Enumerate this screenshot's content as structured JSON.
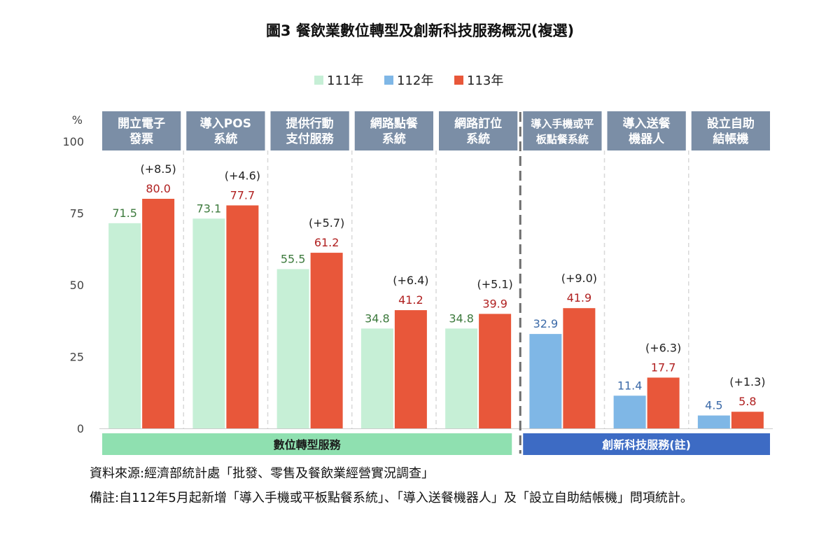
{
  "chart_data": {
    "type": "bar",
    "title": "圖3  餐飲業數位轉型及創新科技服務概況(複選)",
    "ylabel": "%",
    "ylim": [
      0,
      100
    ],
    "yticks": [
      0,
      25,
      50,
      75,
      100
    ],
    "legend_position": "top-center",
    "series_colors": {
      "111年": "#c6efd6",
      "112年": "#7fb7e6",
      "113年": "#e8573a"
    },
    "legend": [
      {
        "name": "111年",
        "color": "#c6efd6"
      },
      {
        "name": "112年",
        "color": "#7fb7e6"
      },
      {
        "name": "113年",
        "color": "#e8573a"
      }
    ],
    "categories": [
      {
        "label_lines": [
          "開立電子",
          "發票"
        ],
        "prev_series": "111年",
        "prev": 71.5,
        "current": 80.0,
        "change": "(+8.5)"
      },
      {
        "label_lines": [
          "導入POS",
          "系統"
        ],
        "prev_series": "111年",
        "prev": 73.1,
        "current": 77.7,
        "change": "(+4.6)"
      },
      {
        "label_lines": [
          "提供行動",
          "支付服務"
        ],
        "prev_series": "111年",
        "prev": 55.5,
        "current": 61.2,
        "change": "(+5.7)"
      },
      {
        "label_lines": [
          "網路點餐",
          "系統"
        ],
        "prev_series": "111年",
        "prev": 34.8,
        "current": 41.2,
        "change": "(+6.4)"
      },
      {
        "label_lines": [
          "網路訂位",
          "系統"
        ],
        "prev_series": "111年",
        "prev": 34.8,
        "current": 39.9,
        "change": "(+5.1)"
      },
      {
        "label_lines": [
          "導入手機或平",
          "板點餐系統"
        ],
        "prev_series": "112年",
        "prev": 32.9,
        "current": 41.9,
        "change": "(+9.0)"
      },
      {
        "label_lines": [
          "導入送餐",
          "機器人"
        ],
        "prev_series": "112年",
        "prev": 11.4,
        "current": 17.7,
        "change": "(+6.3)"
      },
      {
        "label_lines": [
          "設立自助",
          "結帳機"
        ],
        "prev_series": "112年",
        "prev": 4.5,
        "current": 5.8,
        "change": "(+1.3)"
      }
    ],
    "groups": [
      {
        "label": "數位轉型服務",
        "first": 0,
        "last": 4,
        "color": "#8fe0b0",
        "text_color": "#1a1a1a"
      },
      {
        "label": "創新科技服務(註)",
        "first": 5,
        "last": 7,
        "color": "#3d6bc4",
        "text_color": "#ffffff"
      }
    ],
    "header_color": "#7b8ea6",
    "prev_label_colors": {
      "111年": "#3d7a3d",
      "112年": "#3b6aa8"
    },
    "current_label_color": "#b02020"
  },
  "footnotes": {
    "source": "資料來源:經濟部統計處「批發、零售及餐飲業經營實況調查」",
    "note": "備註:自112年5月起新增「導入手機或平板點餐系統」、「導入送餐機器人」及「設立自助結帳機」問項統計。"
  }
}
